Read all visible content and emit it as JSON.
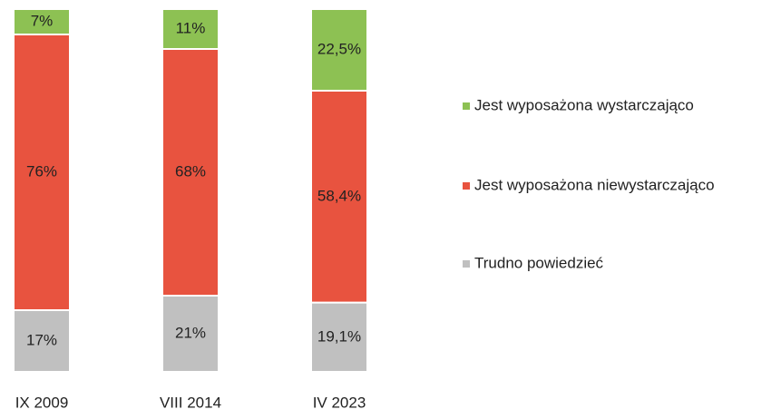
{
  "chart_data": {
    "type": "stacked_bar",
    "categories": [
      "IX 2009",
      "VIII 2014",
      "IV 2023"
    ],
    "series": [
      {
        "name": "Trudno powiedzieć",
        "color": "#c0c0c0",
        "values": [
          17,
          21,
          19.1
        ],
        "value_labels": [
          "17%",
          "21%",
          "19,1%"
        ]
      },
      {
        "name": "Jest wyposażona niewystarczająco",
        "color": "#e8533f",
        "values": [
          76,
          68,
          58.4
        ],
        "value_labels": [
          "76%",
          "68%",
          "58,4%"
        ]
      },
      {
        "name": "Jest wyposażona wystarczająco",
        "color": "#8dc153",
        "values": [
          7,
          11,
          22.5
        ],
        "value_labels": [
          "7%",
          "11%",
          "22,5%"
        ]
      }
    ]
  }
}
